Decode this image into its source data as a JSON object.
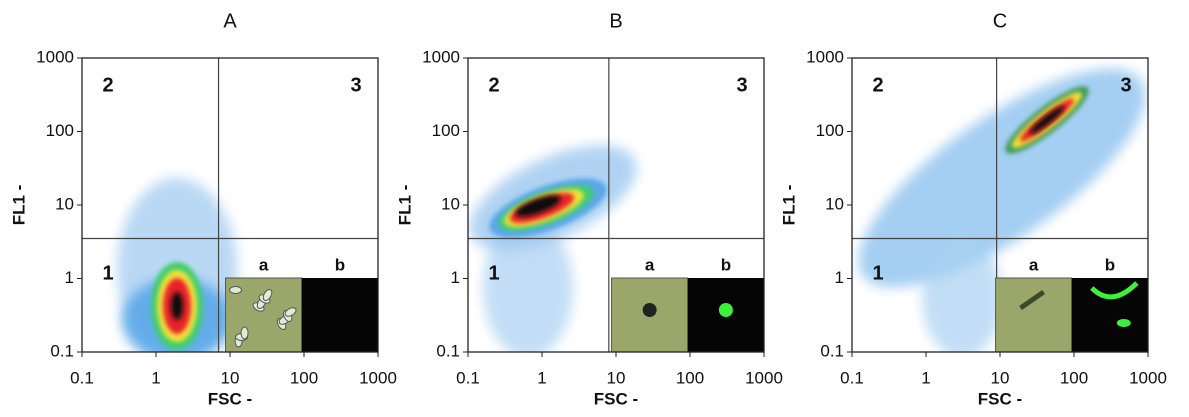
{
  "chart_data": [
    {
      "type": "density",
      "title": "A",
      "x_label": "FSC -",
      "y_label": "FL1 -",
      "log_scale": true,
      "xlim": [
        0.1,
        1000
      ],
      "ylim": [
        0.1,
        1000
      ],
      "xticks": [
        0.1,
        1,
        10,
        100,
        1000
      ],
      "yticks": [
        0.1,
        1,
        10,
        100,
        1000
      ],
      "gate": {
        "x": 7,
        "y": 3.5
      },
      "quadrant_labels": [
        "1",
        "2",
        "3"
      ],
      "inset_labels": [
        "a",
        "b"
      ]
    },
    {
      "type": "density",
      "title": "B",
      "x_label": "FSC -",
      "y_label": "FL1 -",
      "log_scale": true,
      "xlim": [
        0.1,
        1000
      ],
      "ylim": [
        0.1,
        1000
      ],
      "xticks": [
        0.1,
        1,
        10,
        100,
        1000
      ],
      "yticks": [
        0.1,
        1,
        10,
        100,
        1000
      ],
      "gate": {
        "x": 8,
        "y": 3.5
      },
      "quadrant_labels": [
        "1",
        "2",
        "3"
      ],
      "inset_labels": [
        "a",
        "b"
      ]
    },
    {
      "type": "density",
      "title": "C",
      "x_label": "FSC -",
      "y_label": "FL1 -",
      "log_scale": true,
      "xlim": [
        0.1,
        1000
      ],
      "ylim": [
        0.1,
        1000
      ],
      "xticks": [
        0.1,
        1,
        10,
        100,
        1000
      ],
      "yticks": [
        0.1,
        1,
        10,
        100,
        1000
      ],
      "gate": {
        "x": 9,
        "y": 3.5
      },
      "quadrant_labels": [
        "1",
        "2",
        "3"
      ],
      "inset_labels": [
        "a",
        "b"
      ]
    }
  ]
}
